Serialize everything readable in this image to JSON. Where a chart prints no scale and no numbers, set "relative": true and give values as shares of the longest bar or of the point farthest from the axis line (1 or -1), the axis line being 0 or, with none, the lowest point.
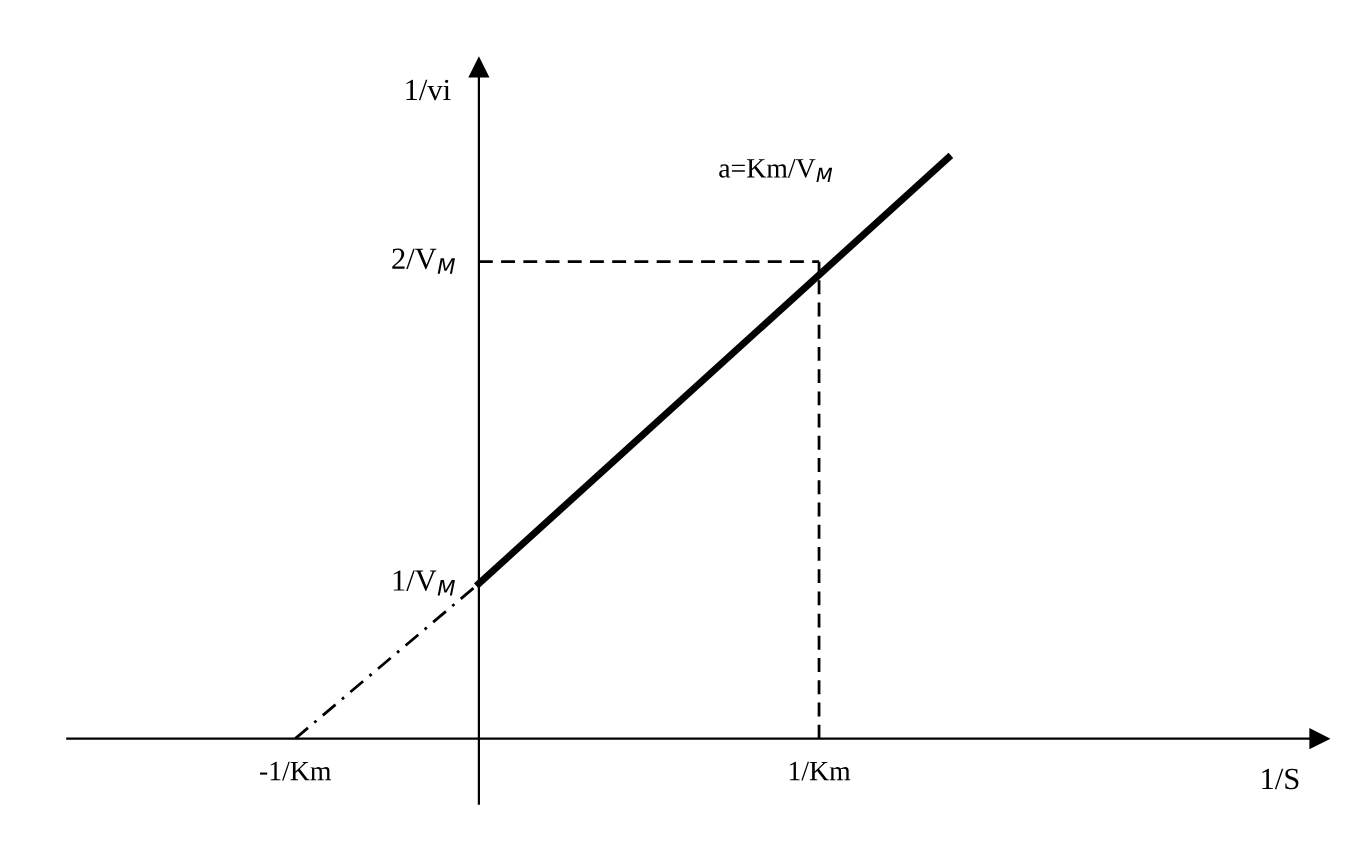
{
  "chart_data": {
    "type": "line",
    "xlabel": "1/S",
    "ylabel": "1/vi",
    "relative": true,
    "xlim": [
      -1.21,
      2.47
    ],
    "xticks": [
      {
        "value": -0.54,
        "label": "-1/Km"
      },
      {
        "value": 1,
        "label": "1/Km"
      }
    ],
    "grid": false,
    "marker": "none",
    "series": [
      {
        "color": "#000000",
        "x": [
          0,
          1.38
        ],
        "values": [
          0.267,
          1
        ],
        "line_style": "solid"
      },
      {
        "color": "#000000",
        "x": [
          -0.54,
          0
        ],
        "values": [
          0,
          0.267
        ],
        "line_style": "dashdot"
      },
      {
        "color": "#000000",
        "x": [
          1,
          1
        ],
        "values": [
          0,
          0.821
        ],
        "line_style": "dashed"
      },
      {
        "color": "#000000",
        "x": [
          0,
          1
        ],
        "values": [
          0.821,
          0.821
        ],
        "line_style": "dashed"
      }
    ],
    "annotations": [
      {
        "text": "1/V$_{M}$",
        "x": 0,
        "y": 0.267
      },
      {
        "text": "2/V$_{M}$",
        "x": 0,
        "y": 0.821
      },
      "a=Km/V$_{M}$"
    ]
  }
}
